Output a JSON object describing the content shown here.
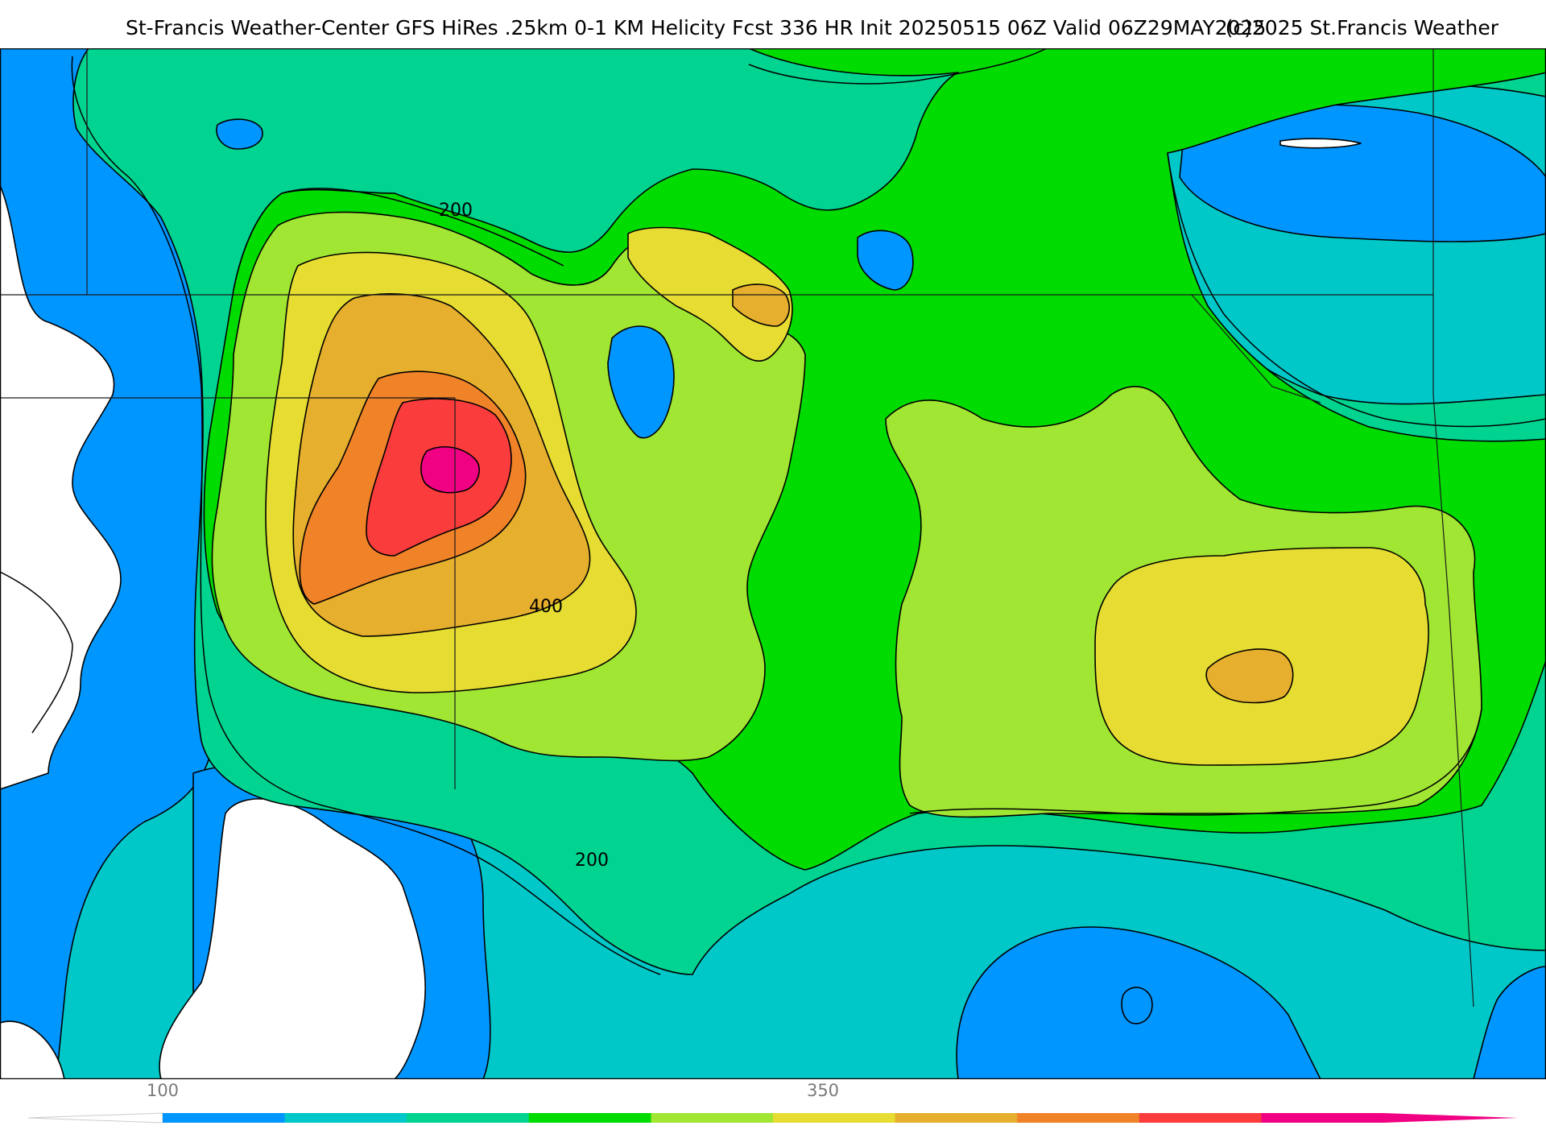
{
  "header": {
    "title": "St-Francis Weather-Center GFS HiRes .25km 0-1 KM Helicity Fcst 336 HR Init 20250515 06Z  Valid 06Z29MAY2025",
    "copyright": "(c)2025 St.Francis Weather"
  },
  "map": {
    "contour_labels": [
      "200",
      "400",
      "200"
    ]
  },
  "legend": {
    "tick_labels": [
      "100",
      "350"
    ],
    "colors": [
      "#0096ff",
      "#00c8c8",
      "#00d490",
      "#00dc00",
      "#a0e632",
      "#e6dc32",
      "#e6af2d",
      "#f08228",
      "#fa3c3c",
      "#f00082"
    ]
  }
}
